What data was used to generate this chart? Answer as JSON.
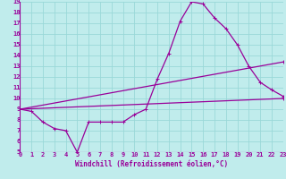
{
  "xlabel": "Windchill (Refroidissement éolien,°C)",
  "xlim": [
    0,
    23
  ],
  "ylim": [
    5,
    19
  ],
  "xticks": [
    0,
    1,
    2,
    3,
    4,
    5,
    6,
    7,
    8,
    9,
    10,
    11,
    12,
    13,
    14,
    15,
    16,
    17,
    18,
    19,
    20,
    21,
    22,
    23
  ],
  "yticks": [
    5,
    6,
    7,
    8,
    9,
    10,
    11,
    12,
    13,
    14,
    15,
    16,
    17,
    18,
    19
  ],
  "background_color": "#c0ecec",
  "grid_color": "#9ad8d8",
  "line_color": "#990099",
  "line1_x": [
    0,
    1,
    2,
    3,
    4,
    5,
    6,
    7,
    8,
    9,
    10,
    11,
    12,
    13,
    14,
    15,
    16,
    17,
    18,
    19,
    20,
    21,
    22,
    23
  ],
  "line1_y": [
    9.0,
    8.8,
    7.8,
    7.2,
    7.0,
    5.0,
    7.8,
    7.8,
    7.8,
    7.8,
    8.5,
    9.0,
    11.8,
    14.2,
    17.2,
    19.0,
    18.8,
    17.5,
    16.5,
    15.0,
    13.0,
    11.5,
    10.8,
    10.2
  ],
  "line2_x": [
    0,
    23
  ],
  "line2_y": [
    9.0,
    10.0
  ],
  "line3_x": [
    0,
    23
  ],
  "line3_y": [
    9.0,
    13.4
  ],
  "tick_fontsize": 5.0,
  "xlabel_fontsize": 5.5
}
